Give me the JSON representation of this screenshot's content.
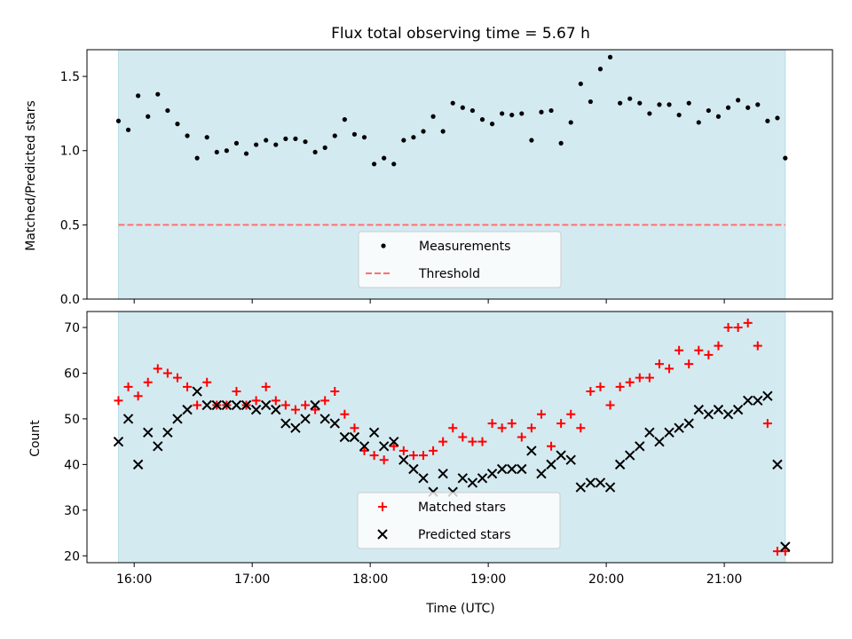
{
  "chart_data": [
    {
      "type": "scatter",
      "title": "Flux total observing time = 5.67 h",
      "ylabel": "Matched/Predicted stars",
      "xlabel": "",
      "xlim": [
        "15:36",
        "21:55"
      ],
      "ylim": [
        0,
        1.68
      ],
      "yticks": [
        0.0,
        0.5,
        1.0,
        1.5
      ],
      "ytick_labels": [
        "0.0",
        "0.5",
        "1.0",
        "1.5"
      ],
      "shaded_span": [
        "15:52",
        "21:31"
      ],
      "shade_color": "#d4eaf1",
      "legend_location": "lower center",
      "series": [
        {
          "name": "Measurements",
          "marker": "dot",
          "color": "#000000",
          "x": [
            "15:52",
            "15:57",
            "16:02",
            "16:07",
            "16:12",
            "16:17",
            "16:22",
            "16:27",
            "16:32",
            "16:37",
            "16:42",
            "16:47",
            "16:52",
            "16:57",
            "17:02",
            "17:07",
            "17:12",
            "17:17",
            "17:22",
            "17:27",
            "17:32",
            "17:37",
            "17:42",
            "17:47",
            "17:52",
            "17:57",
            "18:02",
            "18:07",
            "18:12",
            "18:17",
            "18:22",
            "18:27",
            "18:32",
            "18:37",
            "18:42",
            "18:47",
            "18:52",
            "18:57",
            "19:02",
            "19:07",
            "19:12",
            "19:17",
            "19:22",
            "19:27",
            "19:32",
            "19:37",
            "19:42",
            "19:47",
            "19:52",
            "19:57",
            "20:02",
            "20:07",
            "20:12",
            "20:17",
            "20:22",
            "20:27",
            "20:32",
            "20:37",
            "20:42",
            "20:47",
            "20:52",
            "20:57",
            "21:02",
            "21:07",
            "21:12",
            "21:17",
            "21:22",
            "21:27",
            "21:31"
          ],
          "y": [
            1.2,
            1.14,
            1.37,
            1.23,
            1.38,
            1.27,
            1.18,
            1.1,
            0.95,
            1.09,
            0.99,
            1.0,
            1.05,
            0.98,
            1.04,
            1.07,
            1.04,
            1.08,
            1.08,
            1.06,
            0.99,
            1.02,
            1.1,
            1.21,
            1.11,
            1.09,
            0.91,
            0.95,
            0.91,
            1.07,
            1.09,
            1.13,
            1.23,
            1.13,
            1.32,
            1.29,
            1.27,
            1.21,
            1.18,
            1.25,
            1.24,
            1.25,
            1.07,
            1.26,
            1.27,
            1.05,
            1.19,
            1.45,
            1.33,
            1.55,
            1.63,
            1.32,
            1.35,
            1.32,
            1.25,
            1.31,
            1.31,
            1.24,
            1.32,
            1.19,
            1.27,
            1.23,
            1.29,
            1.34,
            1.29,
            1.31,
            1.2,
            1.22,
            0.95
          ]
        },
        {
          "name": "Threshold",
          "line_style": "dashed",
          "color": "#ff7070",
          "x": [
            "15:52",
            "21:31"
          ],
          "y": [
            0.5,
            0.5
          ]
        }
      ]
    },
    {
      "type": "scatter",
      "title": "",
      "ylabel": "Count",
      "xlabel": "Time (UTC)",
      "xlim": [
        "15:36",
        "21:55"
      ],
      "ylim": [
        18.5,
        73.5
      ],
      "yticks": [
        20,
        30,
        40,
        50,
        60,
        70
      ],
      "ytick_labels": [
        "20",
        "30",
        "40",
        "50",
        "60",
        "70"
      ],
      "xticks": [
        "16:00",
        "17:00",
        "18:00",
        "19:00",
        "20:00",
        "21:00"
      ],
      "xtick_labels": [
        "16:00",
        "17:00",
        "18:00",
        "19:00",
        "20:00",
        "21:00"
      ],
      "shaded_span": [
        "15:52",
        "21:31"
      ],
      "shade_color": "#d4eaf1",
      "legend_location": "lower center",
      "series": [
        {
          "name": "Matched stars",
          "marker": "plus",
          "color": "#ff0000",
          "x": [
            "15:52",
            "15:57",
            "16:02",
            "16:07",
            "16:12",
            "16:17",
            "16:22",
            "16:27",
            "16:32",
            "16:37",
            "16:42",
            "16:47",
            "16:52",
            "16:57",
            "17:02",
            "17:07",
            "17:12",
            "17:17",
            "17:22",
            "17:27",
            "17:32",
            "17:37",
            "17:42",
            "17:47",
            "17:52",
            "17:57",
            "18:02",
            "18:07",
            "18:12",
            "18:17",
            "18:22",
            "18:27",
            "18:32",
            "18:37",
            "18:42",
            "18:47",
            "18:52",
            "18:57",
            "19:02",
            "19:07",
            "19:12",
            "19:17",
            "19:22",
            "19:27",
            "19:32",
            "19:37",
            "19:42",
            "19:47",
            "19:52",
            "19:57",
            "20:02",
            "20:07",
            "20:12",
            "20:17",
            "20:22",
            "20:27",
            "20:32",
            "20:37",
            "20:42",
            "20:47",
            "20:52",
            "20:57",
            "21:02",
            "21:07",
            "21:12",
            "21:17",
            "21:22",
            "21:27",
            "21:31"
          ],
          "y": [
            54,
            57,
            55,
            58,
            61,
            60,
            59,
            57,
            53,
            58,
            53,
            53,
            56,
            53,
            54,
            57,
            54,
            53,
            52,
            53,
            52,
            54,
            56,
            51,
            48,
            43,
            42,
            41,
            44,
            43,
            42,
            42,
            43,
            45,
            48,
            46,
            45,
            45,
            49,
            48,
            49,
            46,
            48,
            51,
            44,
            49,
            51,
            48,
            56,
            57,
            53,
            57,
            58,
            59,
            59,
            62,
            61,
            65,
            62,
            65,
            64,
            66,
            70,
            70,
            71,
            66,
            49,
            21,
            21
          ]
        },
        {
          "name": "Predicted stars",
          "marker": "x",
          "color": "#000000",
          "x": [
            "15:52",
            "15:57",
            "16:02",
            "16:07",
            "16:12",
            "16:17",
            "16:22",
            "16:27",
            "16:32",
            "16:37",
            "16:42",
            "16:47",
            "16:52",
            "16:57",
            "17:02",
            "17:07",
            "17:12",
            "17:17",
            "17:22",
            "17:27",
            "17:32",
            "17:37",
            "17:42",
            "17:47",
            "17:52",
            "17:57",
            "18:02",
            "18:07",
            "18:12",
            "18:17",
            "18:22",
            "18:27",
            "18:32",
            "18:37",
            "18:42",
            "18:47",
            "18:52",
            "18:57",
            "19:02",
            "19:07",
            "19:12",
            "19:17",
            "19:22",
            "19:27",
            "19:32",
            "19:37",
            "19:42",
            "19:47",
            "19:52",
            "19:57",
            "20:02",
            "20:07",
            "20:12",
            "20:17",
            "20:22",
            "20:27",
            "20:32",
            "20:37",
            "20:42",
            "20:47",
            "20:52",
            "20:57",
            "21:02",
            "21:07",
            "21:12",
            "21:17",
            "21:22",
            "21:27",
            "21:31"
          ],
          "y": [
            45,
            50,
            40,
            47,
            44,
            47,
            50,
            52,
            56,
            53,
            53,
            53,
            53,
            53,
            52,
            53,
            52,
            49,
            48,
            50,
            53,
            50,
            49,
            46,
            46,
            44,
            47,
            44,
            45,
            41,
            39,
            37,
            34,
            38,
            34,
            37,
            36,
            37,
            38,
            39,
            39,
            39,
            43,
            38,
            40,
            42,
            41,
            35,
            36,
            36,
            35,
            40,
            42,
            44,
            47,
            45,
            47,
            48,
            49,
            52,
            51,
            52,
            51,
            52,
            54,
            54,
            55,
            40,
            22
          ]
        }
      ]
    }
  ]
}
